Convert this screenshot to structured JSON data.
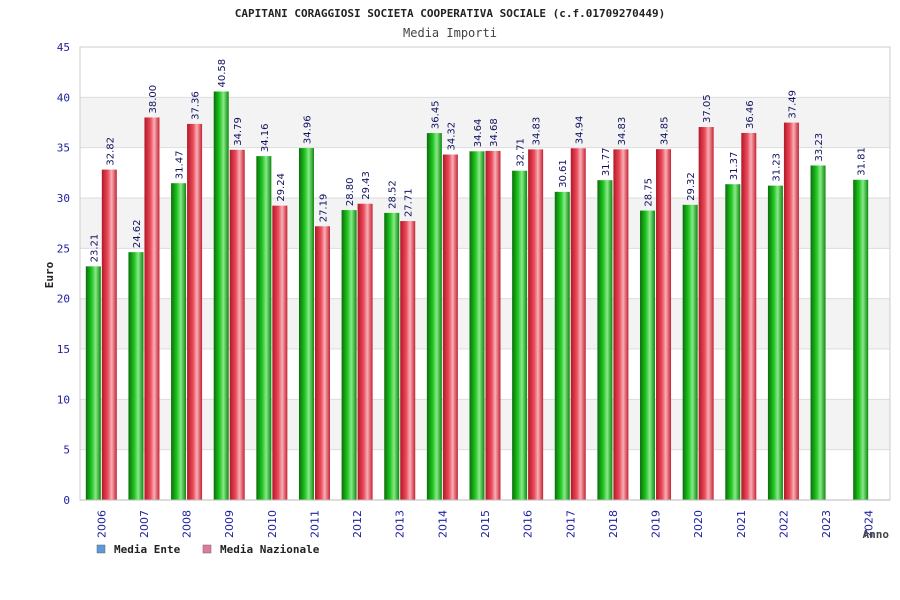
{
  "chart_data": {
    "type": "bar",
    "title": "CAPITANI CORAGGIOSI SOCIETA COOPERATIVA SOCIALE (c.f.01709270449)",
    "subtitle": "Media Importi",
    "xlabel": "Anno",
    "ylabel": "Euro",
    "ylim": [
      0,
      45
    ],
    "ytick_step": 5,
    "yticks": [
      "0",
      "5",
      "10",
      "15",
      "20",
      "25",
      "30",
      "35",
      "40",
      "45"
    ],
    "grid": true,
    "legend_position": "bottom-left",
    "categories": [
      "2006",
      "2007",
      "2008",
      "2009",
      "2010",
      "2011",
      "2012",
      "2013",
      "2014",
      "2015",
      "2016",
      "2017",
      "2018",
      "2019",
      "2020",
      "2021",
      "2022",
      "2023",
      "2024"
    ],
    "series": [
      {
        "name": "Media Ente",
        "legend_color": "#5a9ad8",
        "bar_color": "#18b418",
        "values": [
          23.21,
          24.62,
          31.47,
          40.58,
          34.16,
          34.96,
          28.8,
          28.52,
          36.45,
          34.64,
          32.71,
          30.61,
          31.77,
          28.75,
          29.32,
          31.37,
          31.23,
          33.23,
          31.81
        ],
        "labels": [
          "23.21",
          "24.62",
          "31.47",
          "40.58",
          "34.16",
          "34.96",
          "28.80",
          "28.52",
          "36.45",
          "34.64",
          "32.71",
          "30.61",
          "31.77",
          "28.75",
          "29.32",
          "31.37",
          "31.23",
          "33.23",
          "31.81"
        ]
      },
      {
        "name": "Media Nazionale",
        "legend_color": "#e07a9a",
        "bar_color": "#e8384a",
        "values": [
          32.82,
          38.0,
          37.36,
          34.79,
          29.24,
          27.19,
          29.43,
          27.71,
          34.32,
          34.68,
          34.83,
          34.94,
          34.83,
          34.85,
          37.05,
          36.46,
          37.49,
          null,
          null
        ],
        "labels": [
          "32.82",
          "38.00",
          "37.36",
          "34.79",
          "29.24",
          "27.19",
          "29.43",
          "27.71",
          "34.32",
          "34.68",
          "34.83",
          "34.94",
          "34.83",
          "34.85",
          "37.05",
          "36.46",
          "37.49",
          null,
          null
        ]
      }
    ]
  }
}
